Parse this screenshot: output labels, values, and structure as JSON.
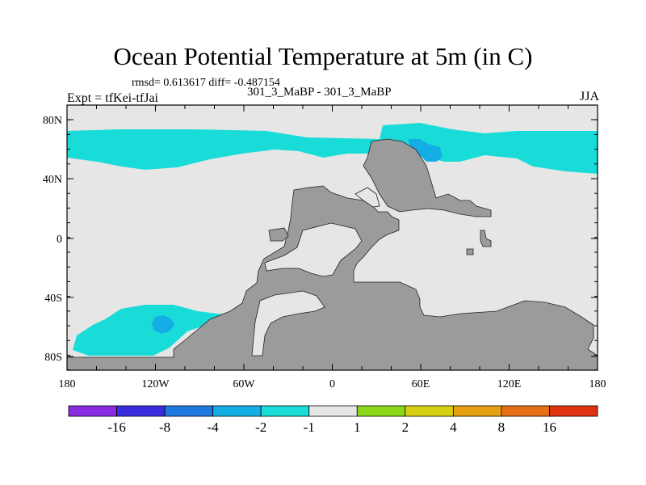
{
  "title": "Ocean Potential Temperature at 5m (in C)",
  "stats": "rmsd= 0.613617 diff= -0.487154",
  "runs": "301_3_MaBP - 301_3_MaBP",
  "expt": "Expt = tfKei-tfJai",
  "season": "JJA",
  "y_tick_labels": [
    "80N",
    "40N",
    "0",
    "40S",
    "80S"
  ],
  "x_tick_labels": [
    "180",
    "120W",
    "60W",
    "0",
    "60E",
    "120E",
    "180"
  ],
  "colorbar": {
    "labels": [
      "-16",
      "-8",
      "-4",
      "-2",
      "-1",
      "1",
      "2",
      "4",
      "8",
      "16"
    ],
    "colors": [
      "#8a2be2",
      "#3a2be0",
      "#1e78e0",
      "#14aee6",
      "#19dcd8",
      "#e6e6e6",
      "#8cd619",
      "#d8d012",
      "#e6a014",
      "#e66e14",
      "#e0320e"
    ]
  },
  "map_colors": {
    "background": "#e6e6e6",
    "land": "#9b9b9b",
    "anomaly_minus_1": "#19dcd8",
    "anomaly_minus_2": "#14aee6",
    "anomaly_minus_4": "#1e78e0"
  }
}
